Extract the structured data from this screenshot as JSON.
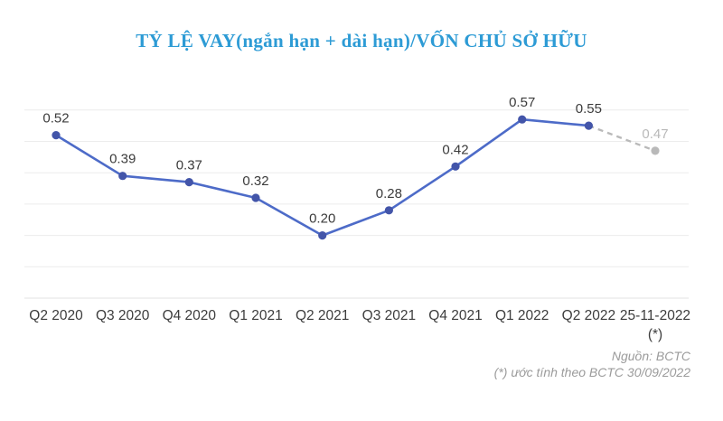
{
  "title": "TỶ LỆ VAY(ngắn hạn + dài hạn)/VỐN CHỦ SỞ HỮU",
  "footer": {
    "source": "Nguồn: BCTC",
    "note": "(*) ước tính theo BCTC 30/09/2022"
  },
  "chart_data": {
    "type": "line",
    "title": "TỶ LỆ VAY(ngắn hạn + dài hạn)/VỐN CHỦ SỞ HỮU",
    "categories": [
      "Q2 2020",
      "Q3 2020",
      "Q4 2020",
      "Q1 2021",
      "Q2 2021",
      "Q3 2021",
      "Q4 2021",
      "Q1 2022",
      "Q2 2022",
      "25-11-2022"
    ],
    "category_footnotes": {
      "9": "(*)"
    },
    "values": [
      0.52,
      0.39,
      0.37,
      0.32,
      0.2,
      0.28,
      0.42,
      0.57,
      0.55,
      0.47
    ],
    "value_labels": [
      "0.52",
      "0.39",
      "0.37",
      "0.32",
      "0.20",
      "0.28",
      "0.42",
      "0.57",
      "0.55",
      "0.47"
    ],
    "estimated_point_index": 9,
    "estimated_note": "dashed gray segment = estimate",
    "xlabel": "",
    "ylabel": "",
    "ylim": [
      0,
      0.6
    ],
    "grid": "horizontal",
    "gridline_step": 0.1,
    "legend": "none",
    "colors": {
      "line": "#4d6bc8",
      "marker": "#4355a9",
      "estimated": "#b9b9b9",
      "grid": "#ececec",
      "grid_bottom": "#e3e3e3",
      "value_label": "#3b3b3b",
      "axis_label": "#3d3d3d",
      "title": "#2d9bd5",
      "footer": "#9b9b9b"
    }
  }
}
